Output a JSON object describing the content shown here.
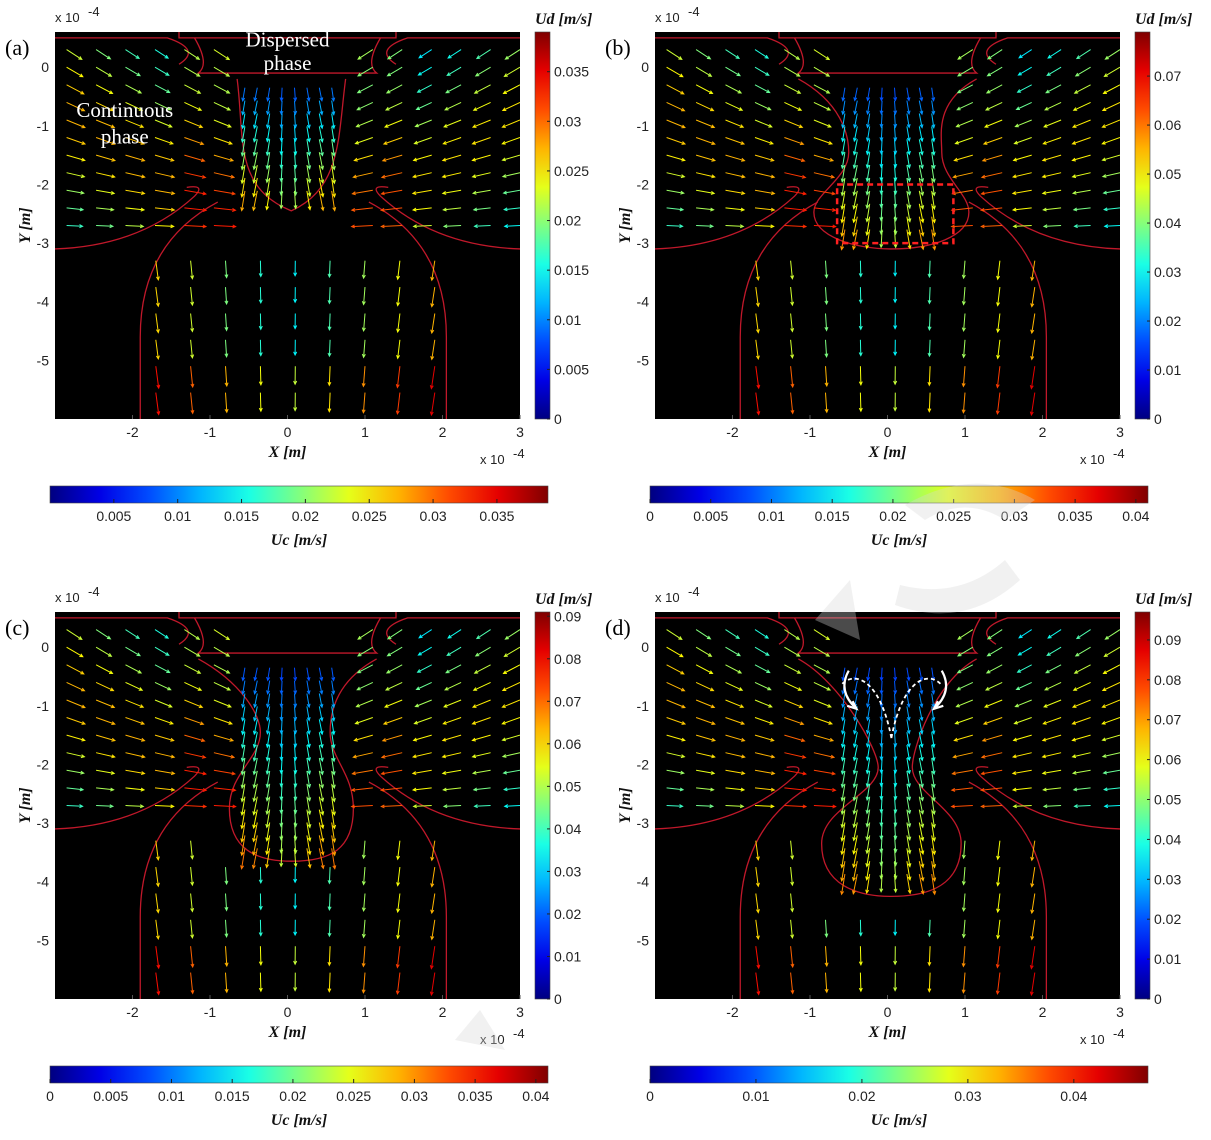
{
  "chart_data": [
    {
      "type": "quiver",
      "panel_label": "(a)",
      "xlabel": "X [m]",
      "ylabel": "Y [m]",
      "x_exponent": "x 10",
      "y_exponent": "x 10",
      "exponent_power": "-4",
      "x_ticks": [
        "-2",
        "-1",
        "0",
        "1",
        "2",
        "3"
      ],
      "y_ticks": [
        "0",
        "-1",
        "-2",
        "-3",
        "-4",
        "-5"
      ],
      "xlim": [
        -3,
        3
      ],
      "ylim": [
        -6,
        0.6
      ],
      "neck_half_width": 0.55,
      "drop_bottom": -2.45,
      "ud_colorbar": {
        "label": "Ud [m/s]",
        "min": 0,
        "max": 0.039,
        "ticks": [
          "0",
          "0.005",
          "0.01",
          "0.015",
          "0.02",
          "0.025",
          "0.03",
          "0.035"
        ]
      },
      "uc_colorbar": {
        "label": "Uc [m/s]",
        "min": 0,
        "max": 0.039,
        "ticks": [
          "0.005",
          "0.01",
          "0.015",
          "0.02",
          "0.025",
          "0.03",
          "0.035"
        ]
      },
      "annotations": [
        {
          "text": "Dispersed",
          "x": 0,
          "y": 0.35
        },
        {
          "text": "phase",
          "x": 0,
          "y": -0.05
        },
        {
          "text": "Continuous",
          "x": -2.1,
          "y": -0.85
        },
        {
          "text": "phase",
          "x": -2.1,
          "y": -1.3
        }
      ]
    },
    {
      "type": "quiver",
      "panel_label": "(b)",
      "xlabel": "X [m]",
      "ylabel": "Y [m]",
      "x_exponent": "x 10",
      "y_exponent": "x 10",
      "exponent_power": "-4",
      "x_ticks": [
        "-2",
        "-1",
        "0",
        "1",
        "2",
        "3"
      ],
      "y_ticks": [
        "0",
        "-1",
        "-2",
        "-3",
        "-4",
        "-5"
      ],
      "xlim": [
        -3,
        3
      ],
      "ylim": [
        -6,
        0.6
      ],
      "neck_half_width": 0.5,
      "drop_bottom": -3.1,
      "ud_colorbar": {
        "label": "Ud [m/s]",
        "min": 0,
        "max": 0.079,
        "ticks": [
          "0",
          "0.01",
          "0.02",
          "0.03",
          "0.04",
          "0.05",
          "0.06",
          "0.07"
        ]
      },
      "uc_colorbar": {
        "label": "Uc [m/s]",
        "min": 0,
        "max": 0.041,
        "ticks": [
          "0",
          "0.005",
          "0.01",
          "0.015",
          "0.02",
          "0.025",
          "0.03",
          "0.035",
          "0.04"
        ]
      },
      "highlight_box": {
        "x": [
          -0.65,
          0.85
        ],
        "y": [
          -3.0,
          -2.0
        ]
      },
      "annotations": []
    },
    {
      "type": "quiver",
      "panel_label": "(c)",
      "xlabel": "X [m]",
      "ylabel": "Y [m]",
      "x_exponent": "x 10",
      "y_exponent": "x 10",
      "exponent_power": "-4",
      "x_ticks": [
        "-2",
        "-1",
        "0",
        "1",
        "2",
        "3"
      ],
      "y_ticks": [
        "0",
        "-1",
        "-2",
        "-3",
        "-4",
        "-5"
      ],
      "xlim": [
        -3,
        3
      ],
      "ylim": [
        -6,
        0.6
      ],
      "neck_half_width": 0.35,
      "drop_bottom": -3.65,
      "ud_colorbar": {
        "label": "Ud [m/s]",
        "min": 0,
        "max": 0.091,
        "ticks": [
          "0",
          "0.01",
          "0.02",
          "0.03",
          "0.04",
          "0.05",
          "0.06",
          "0.07",
          "0.08",
          "0.09"
        ]
      },
      "uc_colorbar": {
        "label": "Uc [m/s]",
        "min": 0,
        "max": 0.041,
        "ticks": [
          "0",
          "0.005",
          "0.01",
          "0.015",
          "0.02",
          "0.025",
          "0.03",
          "0.035",
          "0.04"
        ]
      },
      "annotations": []
    },
    {
      "type": "quiver",
      "panel_label": "(d)",
      "xlabel": "X [m]",
      "ylabel": "Y [m]",
      "x_exponent": "x 10",
      "y_exponent": "x 10",
      "exponent_power": "-4",
      "x_ticks": [
        "-2",
        "-1",
        "0",
        "1",
        "2",
        "3"
      ],
      "y_ticks": [
        "0",
        "-1",
        "-2",
        "-3",
        "-4",
        "-5"
      ],
      "xlim": [
        -3,
        3
      ],
      "ylim": [
        -6,
        0.6
      ],
      "neck_half_width": 0.12,
      "drop_bottom": -4.25,
      "ud_colorbar": {
        "label": "Ud [m/s]",
        "min": 0,
        "max": 0.097,
        "ticks": [
          "0",
          "0.01",
          "0.02",
          "0.03",
          "0.04",
          "0.05",
          "0.06",
          "0.07",
          "0.08",
          "0.09"
        ]
      },
      "uc_colorbar": {
        "label": "Uc [m/s]",
        "min": 0,
        "max": 0.047,
        "ticks": [
          "0",
          "0.01",
          "0.02",
          "0.03",
          "0.04"
        ]
      },
      "recirculation_arrows": true,
      "annotations": []
    }
  ]
}
